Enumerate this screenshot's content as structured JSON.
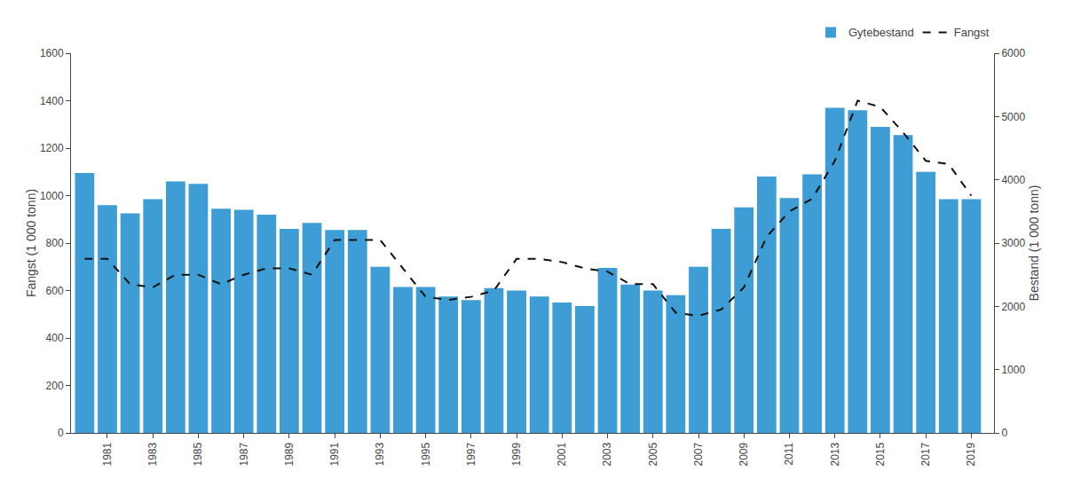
{
  "chart_data": {
    "type": "bar",
    "x": [
      1980,
      1981,
      1982,
      1983,
      1984,
      1985,
      1986,
      1987,
      1988,
      1989,
      1990,
      1991,
      1992,
      1993,
      1994,
      1995,
      1996,
      1997,
      1998,
      1999,
      2000,
      2001,
      2002,
      2003,
      2004,
      2005,
      2006,
      2007,
      2008,
      2009,
      2010,
      2011,
      2012,
      2013,
      2014,
      2015,
      2016,
      2017,
      2018,
      2019
    ],
    "series": [
      {
        "name": "Gytebestand",
        "type": "bar",
        "color": "#3d9dd4",
        "values": [
          1095,
          960,
          925,
          985,
          1060,
          1050,
          945,
          940,
          920,
          860,
          885,
          855,
          855,
          700,
          615,
          615,
          575,
          560,
          610,
          600,
          575,
          550,
          535,
          695,
          625,
          600,
          580,
          700,
          860,
          950,
          1080,
          990,
          1090,
          1370,
          1360,
          1290,
          1255,
          1100,
          985,
          985
        ]
      },
      {
        "name": "Fangst",
        "type": "line",
        "color": "#111111",
        "line_style": "dashed",
        "axis": "y2",
        "values": [
          2750,
          2750,
          2350,
          2300,
          2500,
          2500,
          2350,
          2500,
          2600,
          2600,
          2500,
          3050,
          3050,
          3050,
          2600,
          2150,
          2100,
          2150,
          2250,
          2750,
          2750,
          2700,
          2600,
          2550,
          2350,
          2350,
          1900,
          1850,
          1950,
          2300,
          3100,
          3500,
          3700,
          4300,
          5250,
          5150,
          4750,
          4300,
          4250,
          3750
        ]
      }
    ],
    "ylabel": "Fangst (1 000 tonn)",
    "y2label": "Bestand (1 000 tonn)",
    "xlim": [
      1979.4,
      2020.0
    ],
    "xticks": [
      1981,
      1983,
      1985,
      1987,
      1989,
      1991,
      1993,
      1995,
      1997,
      1999,
      2001,
      2003,
      2005,
      2007,
      2009,
      2011,
      2013,
      2015,
      2017,
      2019
    ],
    "ylim": [
      0,
      1600
    ],
    "yticks": [
      0,
      200,
      400,
      600,
      800,
      1000,
      1200,
      1400,
      1600
    ],
    "y2lim": [
      0,
      6000
    ],
    "y2ticks": [
      0,
      1000,
      2000,
      3000,
      4000,
      5000,
      6000
    ],
    "grid": false,
    "legend": "upper right"
  }
}
